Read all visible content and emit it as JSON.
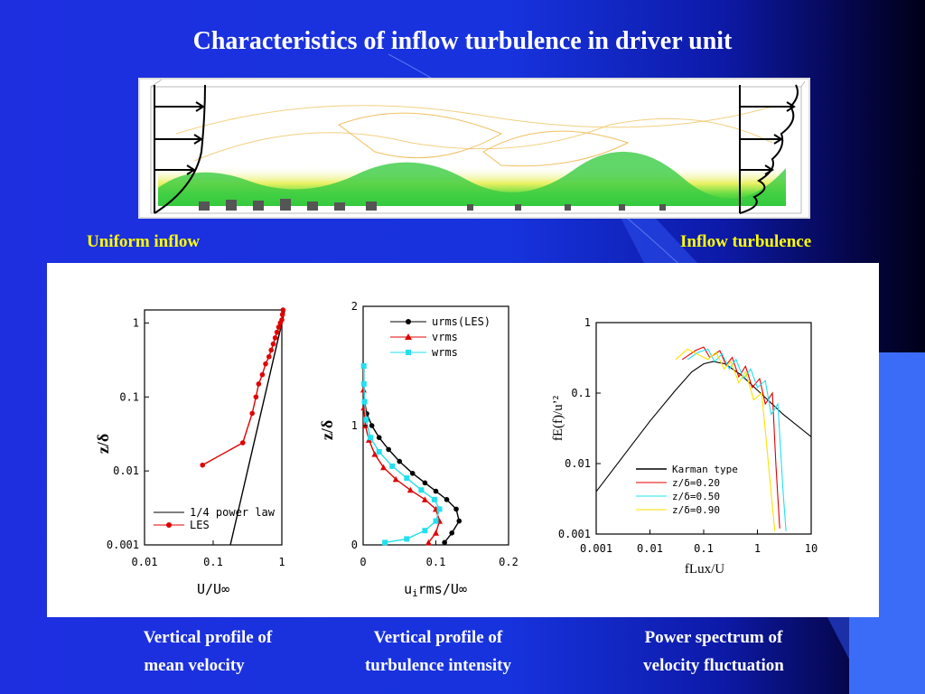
{
  "slide": {
    "title": "Characteristics of inflow turbulence in driver unit",
    "left_label": "Uniform inflow",
    "right_label": "Inflow turbulence",
    "caption_1_line1": "Vertical profile of",
    "caption_1_line2": "mean velocity",
    "caption_2_line1": "Vertical profile of",
    "caption_2_line2": "turbulence intensity",
    "caption_3_line1": "Power spectrum of",
    "caption_3_line2": "velocity fluctuation"
  },
  "colors": {
    "background": "#1a35e0",
    "title": "#ffffff",
    "label": "#ffff00",
    "les": "#e00000",
    "vrms": "#e00000",
    "wrms": "#22e0f0"
  },
  "chart_data": [
    {
      "type": "line",
      "xscale": "log",
      "yscale": "log",
      "xlabel": "U/U∞",
      "ylabel": "z/δ",
      "xlim": [
        0.01,
        1
      ],
      "ylim": [
        0.001,
        1.5
      ],
      "xticks": [
        "0.01",
        "0.1",
        "1"
      ],
      "yticks": [
        "0.001",
        "0.01",
        "0.1",
        "1"
      ],
      "legend_position": "bottom-right",
      "series": [
        {
          "name": "1/4 power law",
          "color": "#000000",
          "marker": "none",
          "x": [
            0.178,
            0.316,
            0.562,
            1.0,
            1.1
          ],
          "y": [
            0.001,
            0.01,
            0.1,
            1.0,
            1.46
          ]
        },
        {
          "name": "LES",
          "color": "#e00000",
          "marker": "circle",
          "x": [
            0.07,
            0.27,
            0.37,
            0.42,
            0.46,
            0.52,
            0.58,
            0.65,
            0.7,
            0.75,
            0.8,
            0.85,
            0.9,
            0.95,
            1.0,
            1.02,
            1.04
          ],
          "y": [
            0.012,
            0.024,
            0.06,
            0.1,
            0.15,
            0.2,
            0.28,
            0.35,
            0.43,
            0.52,
            0.63,
            0.75,
            0.88,
            1.0,
            1.1,
            1.3,
            1.5
          ]
        }
      ]
    },
    {
      "type": "line",
      "xlabel_base": "u",
      "xlabel_sub": "i",
      "xlabel_rest": "rms/U∞",
      "ylabel": "z/δ",
      "xlim": [
        0,
        0.2
      ],
      "ylim": [
        0,
        2
      ],
      "xticks": [
        "0",
        "0.1",
        "0.2"
      ],
      "yticks": [
        "0",
        "1",
        "2"
      ],
      "legend_position": "top-right",
      "series": [
        {
          "name": "urms(LES)",
          "color": "#000000",
          "marker": "circle",
          "x": [
            0.112,
            0.122,
            0.132,
            0.128,
            0.115,
            0.1,
            0.085,
            0.068,
            0.05,
            0.035,
            0.022,
            0.012,
            0.005,
            0.002,
            0.001,
            0.001
          ],
          "y": [
            0.02,
            0.1,
            0.2,
            0.3,
            0.38,
            0.45,
            0.52,
            0.6,
            0.7,
            0.8,
            0.9,
            1.0,
            1.1,
            1.2,
            1.35,
            1.5
          ]
        },
        {
          "name": "vrms",
          "color": "#e00000",
          "marker": "triangle",
          "x": [
            0.09,
            0.1,
            0.105,
            0.1,
            0.085,
            0.065,
            0.045,
            0.028,
            0.016,
            0.008,
            0.003,
            0.001,
            0.0005
          ],
          "y": [
            0.02,
            0.1,
            0.2,
            0.3,
            0.38,
            0.46,
            0.55,
            0.65,
            0.76,
            0.88,
            1.0,
            1.15,
            1.3
          ]
        },
        {
          "name": "wrms",
          "color": "#22e0f0",
          "marker": "square",
          "x": [
            0.03,
            0.06,
            0.085,
            0.1,
            0.105,
            0.098,
            0.08,
            0.06,
            0.04,
            0.022,
            0.01,
            0.004,
            0.002,
            0.001,
            0.0008
          ],
          "y": [
            0.02,
            0.05,
            0.12,
            0.2,
            0.3,
            0.38,
            0.46,
            0.56,
            0.66,
            0.78,
            0.9,
            1.05,
            1.2,
            1.35,
            1.5
          ]
        }
      ]
    },
    {
      "type": "line",
      "xscale": "log",
      "yscale": "log",
      "xlabel": "fLux/U",
      "ylabel": "fE(f)/u’²",
      "xlim": [
        0.001,
        10
      ],
      "ylim": [
        0.001,
        1
      ],
      "xticks": [
        "0.001",
        "0.01",
        "0.1",
        "1",
        "10"
      ],
      "yticks": [
        "0.001",
        "0.01",
        "0.1",
        "1"
      ],
      "legend_position": "bottom-right",
      "series": [
        {
          "name": "Karman type",
          "color": "#000000",
          "x": [
            0.001,
            0.003,
            0.01,
            0.03,
            0.06,
            0.1,
            0.15,
            0.25,
            0.5,
            1,
            3,
            10
          ],
          "y": [
            0.004,
            0.012,
            0.04,
            0.11,
            0.2,
            0.26,
            0.28,
            0.26,
            0.18,
            0.11,
            0.05,
            0.024
          ]
        },
        {
          "name": "z/δ=0.20",
          "color": "#e00000",
          "x": [
            0.04,
            0.07,
            0.1,
            0.13,
            0.2,
            0.26,
            0.34,
            0.45,
            0.6,
            0.8,
            1.1,
            1.4,
            1.9,
            2.2,
            2.6
          ],
          "y": [
            0.3,
            0.4,
            0.45,
            0.32,
            0.4,
            0.25,
            0.32,
            0.17,
            0.24,
            0.12,
            0.16,
            0.07,
            0.1,
            0.01,
            0.0012
          ]
        },
        {
          "name": "z/δ=0.50",
          "color": "#22e0f0",
          "x": [
            0.05,
            0.08,
            0.12,
            0.16,
            0.22,
            0.3,
            0.4,
            0.55,
            0.75,
            1.0,
            1.4,
            1.8,
            2.4,
            3.0,
            3.4
          ],
          "y": [
            0.3,
            0.38,
            0.42,
            0.28,
            0.36,
            0.22,
            0.3,
            0.16,
            0.22,
            0.12,
            0.15,
            0.05,
            0.07,
            0.004,
            0.0011
          ]
        },
        {
          "name": "z/δ=0.90",
          "color": "#ffe000",
          "x": [
            0.03,
            0.05,
            0.08,
            0.12,
            0.17,
            0.24,
            0.32,
            0.45,
            0.6,
            0.85,
            1.2,
            1.6,
            2.1
          ],
          "y": [
            0.3,
            0.42,
            0.35,
            0.3,
            0.38,
            0.22,
            0.28,
            0.14,
            0.2,
            0.08,
            0.1,
            0.01,
            0.0011
          ]
        }
      ]
    }
  ]
}
